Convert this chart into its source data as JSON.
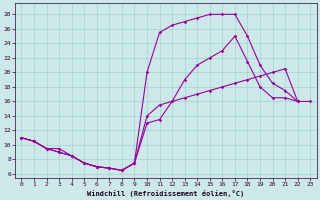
{
  "xlabel": "Windchill (Refroidissement éolien,°C)",
  "bg_color": "#cce8e8",
  "line_color": "#990099",
  "xlim": [
    -0.5,
    23.5
  ],
  "ylim": [
    5.5,
    29.5
  ],
  "xticks": [
    0,
    1,
    2,
    3,
    4,
    5,
    6,
    7,
    8,
    9,
    10,
    11,
    12,
    13,
    14,
    15,
    16,
    17,
    18,
    19,
    20,
    21,
    22,
    23
  ],
  "yticks": [
    6,
    8,
    10,
    12,
    14,
    16,
    18,
    20,
    22,
    24,
    26,
    28
  ],
  "line1_x": [
    0,
    1,
    2,
    3,
    4,
    5,
    6,
    7,
    8,
    9,
    10,
    11,
    12,
    13,
    14,
    15,
    16,
    17,
    18,
    19,
    20,
    21,
    22,
    23
  ],
  "line1_y": [
    11,
    10.5,
    9.5,
    9.0,
    8.5,
    7.5,
    7.0,
    6.8,
    6.5,
    7.5,
    14.0,
    15.5,
    16.0,
    16.5,
    17.0,
    17.5,
    18.0,
    18.5,
    19.0,
    19.5,
    20.0,
    20.5,
    16.0,
    16.0
  ],
  "line2_x": [
    0,
    1,
    2,
    3,
    4,
    5,
    6,
    7,
    8,
    9,
    10,
    11,
    12,
    13,
    14,
    15,
    16,
    17,
    18,
    19,
    20,
    21,
    22
  ],
  "line2_y": [
    11,
    10.5,
    9.5,
    9.5,
    8.5,
    7.5,
    7.0,
    6.8,
    6.5,
    7.5,
    20.0,
    25.5,
    26.5,
    27.0,
    27.5,
    28.0,
    28.0,
    28.0,
    25.0,
    21.0,
    18.5,
    17.5,
    16.0
  ],
  "line3_x": [
    0,
    1,
    2,
    3,
    4,
    5,
    6,
    7,
    8,
    9,
    10,
    11,
    12,
    13,
    14,
    15,
    16,
    17,
    18,
    19,
    20,
    21,
    22
  ],
  "line3_y": [
    11,
    10.5,
    9.5,
    9.0,
    8.5,
    7.5,
    7.0,
    6.8,
    6.5,
    7.5,
    13.0,
    13.5,
    16.0,
    19.0,
    21.0,
    22.0,
    23.0,
    25.0,
    21.5,
    18.0,
    16.5,
    16.5,
    16.0
  ]
}
